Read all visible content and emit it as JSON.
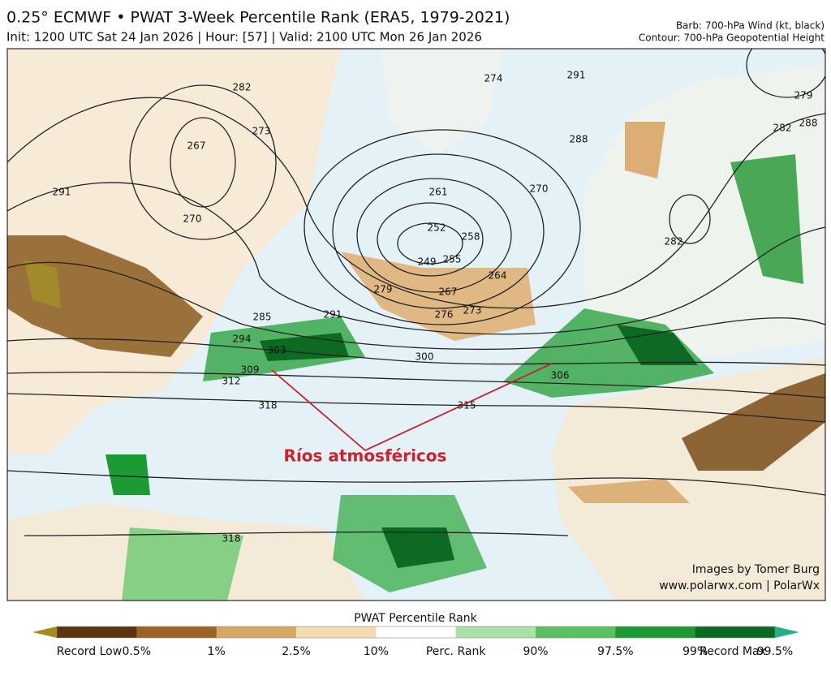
{
  "header": {
    "title": "0.25° ECMWF • PWAT 3-Week Percentile Rank (ERA5, 1979-2021)",
    "subtitle": "Init: 1200 UTC Sat 24 Jan 2026 | Hour: [57] | Valid: 2100 UTC Mon 26 Jan 2026",
    "right_line_1": "Barb: 700-hPa Wind (kt, black)",
    "right_line_2": "Contour: 700-hPa Geopotential Height"
  },
  "map": {
    "annotation": "Ríos atmosféricos",
    "contour_labels": [
      282,
      267,
      273,
      270,
      291,
      261,
      252,
      258,
      249,
      255,
      267,
      264,
      279,
      276,
      273,
      285,
      291,
      294,
      303,
      309,
      312,
      300,
      306,
      318,
      315,
      288,
      270,
      274,
      291,
      282,
      279,
      288,
      282,
      318
    ],
    "credit_1": "Images by Tomer Burg",
    "credit_2": "www.polarwx.com | PolarWx"
  },
  "colorbar": {
    "title": "PWAT Percentile Rank",
    "colors": [
      "#a88a1a",
      "#5a3510",
      "#9a6428",
      "#d6a866",
      "#f4dcb2",
      "#ffffff",
      "#a8e2a8",
      "#5cc062",
      "#1c9a34",
      "#0b6a22",
      "#22b084"
    ],
    "labels": [
      "Record Low",
      "0.5%",
      "1%",
      "2.5%",
      "10%",
      "Perc. Rank",
      "90%",
      "97.5%",
      "99%",
      "99.5%",
      "Record Max"
    ]
  }
}
